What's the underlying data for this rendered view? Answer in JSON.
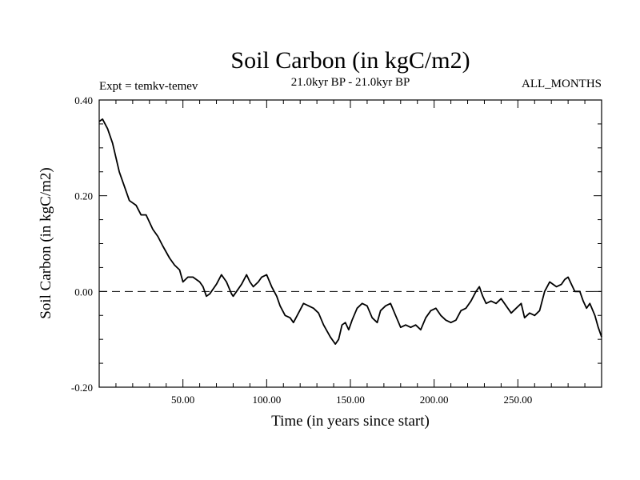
{
  "chart_data": {
    "type": "line",
    "title": "Soil Carbon (in kgC/m2)",
    "expt_label": "Expt = temkv-temev",
    "period_label": "21.0kyr BP - 21.0kyr BP",
    "months_label": "ALL_MONTHS",
    "xlabel": "Time (in years since start)",
    "ylabel": "Soil Carbon (in kgC/m2)",
    "xlim": [
      0,
      300
    ],
    "ylim": [
      -0.2,
      0.4
    ],
    "x_ticks": [
      50,
      100,
      150,
      200,
      250
    ],
    "x_tick_labels": [
      "50.00",
      "100.00",
      "150.00",
      "200.00",
      "250.00"
    ],
    "y_ticks": [
      -0.2,
      0.0,
      0.2,
      0.4
    ],
    "y_tick_labels": [
      "-0.20",
      "0.00",
      "0.20",
      "0.40"
    ],
    "reference_line": {
      "y": 0.0,
      "style": "dashed"
    },
    "grid": false,
    "series": [
      {
        "name": "Soil Carbon",
        "color": "#000000",
        "x": [
          0,
          2,
          5,
          8,
          12,
          15,
          18,
          22,
          25,
          28,
          32,
          35,
          38,
          42,
          45,
          48,
          50,
          53,
          56,
          60,
          62,
          64,
          66,
          70,
          73,
          76,
          79,
          80,
          82,
          85,
          88,
          90,
          92,
          95,
          97,
          100,
          103,
          106,
          108,
          111,
          114,
          116,
          119,
          122,
          125,
          128,
          131,
          134,
          138,
          141,
          143,
          145,
          147,
          149,
          151,
          154,
          157,
          160,
          163,
          166,
          168,
          171,
          174,
          177,
          180,
          183,
          186,
          189,
          192,
          195,
          198,
          201,
          204,
          207,
          210,
          213,
          216,
          219,
          222,
          225,
          227,
          229,
          231,
          234,
          237,
          240,
          243,
          246,
          249,
          252,
          254,
          257,
          260,
          263,
          266,
          269,
          271,
          273,
          276,
          278,
          280,
          282,
          284,
          287,
          289,
          291,
          293,
          296,
          298,
          300
        ],
        "y": [
          0.355,
          0.36,
          0.34,
          0.31,
          0.25,
          0.22,
          0.19,
          0.18,
          0.16,
          0.16,
          0.13,
          0.115,
          0.095,
          0.07,
          0.055,
          0.045,
          0.02,
          0.03,
          0.03,
          0.02,
          0.01,
          -0.01,
          -0.005,
          0.015,
          0.035,
          0.02,
          -0.005,
          -0.01,
          0.0,
          0.015,
          0.035,
          0.02,
          0.01,
          0.02,
          0.03,
          0.035,
          0.01,
          -0.01,
          -0.03,
          -0.05,
          -0.055,
          -0.065,
          -0.045,
          -0.025,
          -0.03,
          -0.035,
          -0.045,
          -0.07,
          -0.095,
          -0.11,
          -0.1,
          -0.07,
          -0.065,
          -0.08,
          -0.06,
          -0.035,
          -0.025,
          -0.03,
          -0.055,
          -0.065,
          -0.04,
          -0.03,
          -0.025,
          -0.05,
          -0.075,
          -0.07,
          -0.075,
          -0.07,
          -0.08,
          -0.055,
          -0.04,
          -0.035,
          -0.05,
          -0.06,
          -0.065,
          -0.06,
          -0.04,
          -0.035,
          -0.02,
          0.0,
          0.01,
          -0.01,
          -0.025,
          -0.02,
          -0.025,
          -0.015,
          -0.03,
          -0.045,
          -0.035,
          -0.025,
          -0.055,
          -0.045,
          -0.05,
          -0.04,
          0.0,
          0.02,
          0.015,
          0.01,
          0.015,
          0.025,
          0.03,
          0.015,
          0.0,
          0.0,
          -0.02,
          -0.035,
          -0.025,
          -0.05,
          -0.075,
          -0.095
        ]
      }
    ]
  }
}
